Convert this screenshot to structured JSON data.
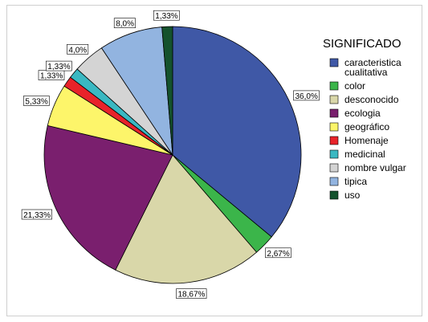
{
  "chart_data": {
    "type": "pie",
    "legend_title": "SIGNIFICADO",
    "legend_position": "right",
    "slices": [
      {
        "label": [
          "caracteristica",
          "cualitativa"
        ],
        "value": 36.0,
        "value_label": "36,0%",
        "color": "#3f58a6"
      },
      {
        "label": [
          "color"
        ],
        "value": 2.67,
        "value_label": "2,67%",
        "color": "#3bb54a"
      },
      {
        "label": [
          "desconocido"
        ],
        "value": 18.67,
        "value_label": "18,67%",
        "color": "#d9d7a9"
      },
      {
        "label": [
          "ecologia"
        ],
        "value": 21.33,
        "value_label": "21,33%",
        "color": "#7a1f6e"
      },
      {
        "label": [
          "geográfico"
        ],
        "value": 5.33,
        "value_label": "5,33%",
        "color": "#fdf56a"
      },
      {
        "label": [
          "Homenaje"
        ],
        "value": 1.33,
        "value_label": "1,33%",
        "color": "#e8232a"
      },
      {
        "label": [
          "medicinal"
        ],
        "value": 1.33,
        "value_label": "1,33%",
        "color": "#3ab8c2"
      },
      {
        "label": [
          "nombre vulgar"
        ],
        "value": 4.0,
        "value_label": "4,0%",
        "color": "#d4d4d4"
      },
      {
        "label": [
          "tipica"
        ],
        "value": 8.0,
        "value_label": "8,0%",
        "color": "#92b4e0"
      },
      {
        "label": [
          "uso"
        ],
        "value": 1.33,
        "value_label": "1,33%",
        "color": "#14522d"
      }
    ]
  }
}
